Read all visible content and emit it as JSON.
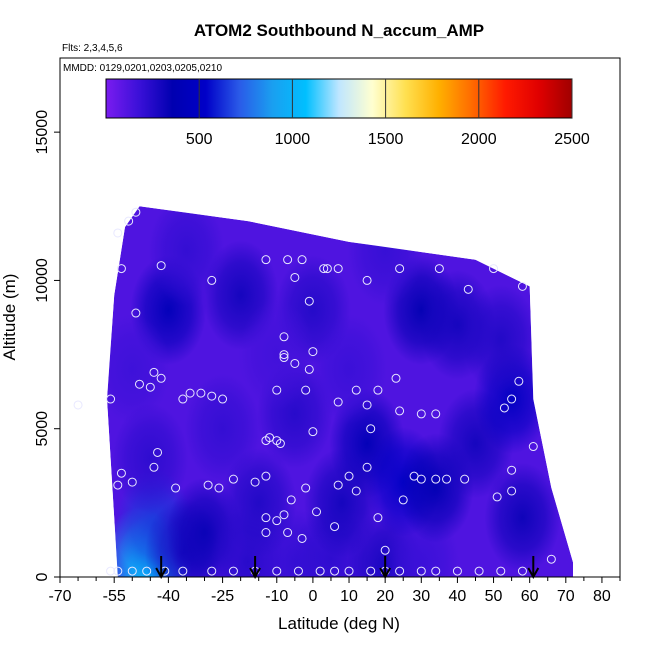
{
  "chart_data": {
    "type": "heatmap",
    "title": "ATOM2 Southbound N_accum_AMP",
    "subtitle_flights": "Flts: 2,3,4,5,6",
    "subtitle_dates": "MMDD: 0129,0201,0203,0205,0210",
    "xlabel": "Latitude (deg N)",
    "ylabel": "Altitude (m)",
    "xlim": [
      -70,
      85
    ],
    "ylim": [
      0,
      17500
    ],
    "x_ticks": [
      -70,
      -55,
      -40,
      -25,
      -10,
      0,
      10,
      20,
      30,
      40,
      50,
      60,
      70,
      80
    ],
    "x_tick_labels": [
      "-70",
      "-55",
      "-40",
      "-25",
      "-10",
      "0",
      "10",
      "20",
      "30",
      "40",
      "50",
      "60",
      "70",
      "80"
    ],
    "x_minor_ticks": [
      -65,
      -60,
      -50,
      -45,
      -35,
      -30,
      -20,
      -15,
      -5,
      5,
      15,
      25,
      35,
      45,
      55,
      65,
      75,
      85
    ],
    "y_ticks": [
      0,
      5000,
      10000,
      15000
    ],
    "y_tick_labels": [
      "0",
      "5000",
      "10000",
      "15000"
    ],
    "colorbar": {
      "range": [
        0,
        2500
      ],
      "ticks": [
        500,
        1000,
        1500,
        2000,
        2500
      ],
      "tick_labels": [
        "500",
        "1000",
        "1500",
        "2000",
        "2500"
      ],
      "colors": [
        "#7a1cf0",
        "#3a10d8",
        "#0000b0",
        "#0000c8",
        "#2a5ae8",
        "#1a9ff0",
        "#00bfff",
        "#bfe6ff",
        "#ffffd0",
        "#ffe050",
        "#ffb000",
        "#ff6a00",
        "#ff1a00",
        "#e00000",
        "#a00000"
      ]
    },
    "domain_outline": [
      [
        -54,
        0
      ],
      [
        -57,
        6000
      ],
      [
        -55,
        9500
      ],
      [
        -52,
        11800
      ],
      [
        -48,
        12500
      ],
      [
        -18,
        12000
      ],
      [
        10,
        11300
      ],
      [
        45,
        10700
      ],
      [
        60,
        9800
      ],
      [
        61,
        6000
      ],
      [
        66,
        3000
      ],
      [
        72,
        500
      ],
      [
        72,
        0
      ]
    ],
    "values": [
      [
        -48,
        500,
        850
      ],
      [
        -44,
        300,
        1050
      ],
      [
        -44,
        1800,
        650
      ],
      [
        -36,
        800,
        280
      ],
      [
        -30,
        1500,
        330
      ],
      [
        -18,
        500,
        240
      ],
      [
        -5,
        500,
        200
      ],
      [
        5,
        600,
        220
      ],
      [
        20,
        400,
        290
      ],
      [
        30,
        500,
        180
      ],
      [
        -45,
        4000,
        220
      ],
      [
        -25,
        5000,
        200
      ],
      [
        -5,
        5500,
        240
      ],
      [
        15,
        4500,
        400
      ],
      [
        25,
        3200,
        520
      ],
      [
        34,
        3000,
        380
      ],
      [
        45,
        4500,
        300
      ],
      [
        -40,
        9000,
        420
      ],
      [
        -20,
        9500,
        300
      ],
      [
        0,
        9000,
        250
      ],
      [
        30,
        9000,
        350
      ],
      [
        40,
        8500,
        300
      ],
      [
        55,
        6000,
        480
      ],
      [
        10,
        7000,
        180
      ],
      [
        -10,
        7500,
        160
      ],
      [
        -50,
        7000,
        170
      ],
      [
        -35,
        11000,
        200
      ],
      [
        20,
        11000,
        190
      ],
      [
        52,
        8000,
        260
      ],
      [
        -15,
        2500,
        260
      ],
      [
        8,
        2500,
        300
      ],
      [
        58,
        2000,
        320
      ]
    ],
    "observations": [
      [
        -54,
        11600
      ],
      [
        -51,
        12000
      ],
      [
        -49,
        12300
      ],
      [
        -53,
        10400
      ],
      [
        -42,
        10500
      ],
      [
        -28,
        10000
      ],
      [
        -13,
        10700
      ],
      [
        -7,
        10700
      ],
      [
        -5,
        10100
      ],
      [
        -3,
        10700
      ],
      [
        3,
        10400
      ],
      [
        4,
        10400
      ],
      [
        7,
        10400
      ],
      [
        15,
        10000
      ],
      [
        24,
        10400
      ],
      [
        35,
        10400
      ],
      [
        43,
        9700
      ],
      [
        50,
        10400
      ],
      [
        58,
        9800
      ],
      [
        -49,
        8900
      ],
      [
        -1,
        9300
      ],
      [
        -8,
        8100
      ],
      [
        -8,
        7500
      ],
      [
        -8,
        7400
      ],
      [
        -5,
        7200
      ],
      [
        -1,
        7000
      ],
      [
        0,
        7600
      ],
      [
        -44,
        6900
      ],
      [
        -42,
        6700
      ],
      [
        -48,
        6500
      ],
      [
        -45,
        6400
      ],
      [
        -56,
        6000
      ],
      [
        -36,
        6000
      ],
      [
        -34,
        6200
      ],
      [
        -31,
        6200
      ],
      [
        -28,
        6100
      ],
      [
        -25,
        6000
      ],
      [
        -10,
        6300
      ],
      [
        -2,
        6300
      ],
      [
        7,
        5900
      ],
      [
        12,
        6300
      ],
      [
        15,
        5800
      ],
      [
        18,
        6300
      ],
      [
        23,
        6700
      ],
      [
        -65,
        5800
      ],
      [
        -13,
        4600
      ],
      [
        -12,
        4700
      ],
      [
        -10,
        4600
      ],
      [
        -9,
        4500
      ],
      [
        0,
        4900
      ],
      [
        16,
        5000
      ],
      [
        24,
        5600
      ],
      [
        30,
        5500
      ],
      [
        34,
        5500
      ],
      [
        55,
        6000
      ],
      [
        53,
        5700
      ],
      [
        -53,
        3500
      ],
      [
        -54,
        3100
      ],
      [
        -50,
        3200
      ],
      [
        -44,
        3700
      ],
      [
        -43,
        4200
      ],
      [
        -38,
        3000
      ],
      [
        -29,
        3100
      ],
      [
        -26,
        3000
      ],
      [
        -22,
        3300
      ],
      [
        -16,
        3200
      ],
      [
        -13,
        3400
      ],
      [
        -2,
        3000
      ],
      [
        7,
        3100
      ],
      [
        10,
        3400
      ],
      [
        12,
        2900
      ],
      [
        15,
        3700
      ],
      [
        25,
        2600
      ],
      [
        28,
        3400
      ],
      [
        30,
        3300
      ],
      [
        34,
        3300
      ],
      [
        37,
        3300
      ],
      [
        42,
        3300
      ],
      [
        51,
        2700
      ],
      [
        55,
        3600
      ],
      [
        55,
        2900
      ],
      [
        -6,
        2600
      ],
      [
        -8,
        2100
      ],
      [
        -13,
        2000
      ],
      [
        -10,
        1900
      ],
      [
        1,
        2200
      ],
      [
        6,
        1700
      ],
      [
        18,
        2000
      ],
      [
        -13,
        1500
      ],
      [
        -7,
        1500
      ],
      [
        -3,
        1300
      ],
      [
        20,
        900
      ],
      [
        -56,
        200
      ],
      [
        -54,
        200
      ],
      [
        -50,
        200
      ],
      [
        -46,
        200
      ],
      [
        -41,
        200
      ],
      [
        -36,
        200
      ],
      [
        -28,
        200
      ],
      [
        -22,
        200
      ],
      [
        -16,
        200
      ],
      [
        -10,
        200
      ],
      [
        -4,
        200
      ],
      [
        2,
        200
      ],
      [
        6,
        200
      ],
      [
        10,
        200
      ],
      [
        16,
        200
      ],
      [
        20,
        200
      ],
      [
        24,
        200
      ],
      [
        30,
        200
      ],
      [
        34,
        200
      ],
      [
        40,
        200
      ],
      [
        46,
        200
      ],
      [
        52,
        200
      ],
      [
        58,
        200
      ],
      [
        66,
        600
      ],
      [
        61,
        4400
      ],
      [
        57,
        6600
      ]
    ],
    "arrows_at_latitude": [
      -42,
      -16,
      20,
      61
    ]
  }
}
